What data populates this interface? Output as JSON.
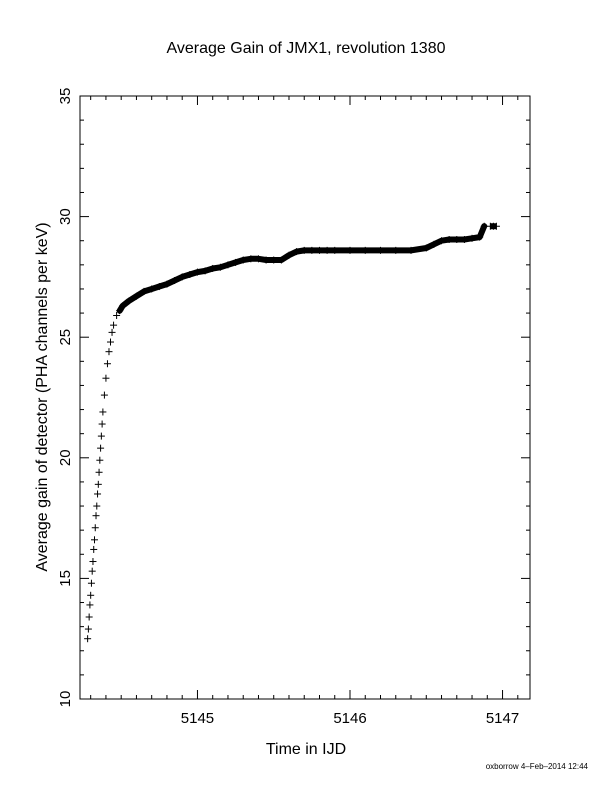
{
  "chart_data": {
    "type": "scatter",
    "title": "Average Gain of JMX1, revolution 1380",
    "xlabel": "Time in IJD",
    "ylabel": "Average gain of detector (PHA channels per keV)",
    "xlim": [
      5144.23,
      5147.18
    ],
    "ylim": [
      10,
      35
    ],
    "xticks": [
      5145,
      5146,
      5147
    ],
    "yticks": [
      10,
      15,
      20,
      25,
      30,
      35
    ],
    "marker": "plus",
    "grid": false,
    "legend": "none",
    "series": [
      {
        "x": [
          5144.28,
          5144.285,
          5144.29,
          5144.295,
          5144.3,
          5144.305,
          5144.31,
          5144.315,
          5144.32,
          5144.325,
          5144.33,
          5144.335,
          5144.34,
          5144.345,
          5144.35,
          5144.355,
          5144.36,
          5144.365,
          5144.37,
          5144.375,
          5144.38,
          5144.39,
          5144.4,
          5144.41,
          5144.42,
          5144.43,
          5144.44,
          5144.45,
          5144.47,
          5144.49,
          5144.51,
          5144.55,
          5144.6,
          5144.65,
          5144.7,
          5144.75,
          5144.8,
          5144.85,
          5144.9,
          5144.95,
          5145.0,
          5145.05,
          5145.1,
          5145.15,
          5145.2,
          5145.25,
          5145.3,
          5145.35,
          5145.4,
          5145.45,
          5145.5,
          5145.55,
          5145.6,
          5145.65,
          5145.7,
          5145.75,
          5145.8,
          5145.85,
          5145.9,
          5146.0,
          5146.1,
          5146.2,
          5146.3,
          5146.4,
          5146.5,
          5146.55,
          5146.6,
          5146.65,
          5146.7,
          5146.75,
          5146.8,
          5146.85,
          5146.88,
          5146.92,
          5146.94,
          5146.96
        ],
        "y": [
          12.5,
          12.9,
          13.4,
          13.9,
          14.3,
          14.8,
          15.3,
          15.7,
          16.2,
          16.6,
          17.1,
          17.6,
          18.0,
          18.5,
          18.9,
          19.4,
          19.9,
          20.4,
          20.9,
          21.4,
          21.9,
          22.6,
          23.3,
          23.9,
          24.4,
          24.8,
          25.2,
          25.5,
          25.9,
          26.1,
          26.3,
          26.5,
          26.7,
          26.9,
          27.0,
          27.1,
          27.2,
          27.35,
          27.5,
          27.6,
          27.7,
          27.75,
          27.85,
          27.9,
          28.0,
          28.1,
          28.2,
          28.25,
          28.25,
          28.2,
          28.2,
          28.2,
          28.4,
          28.55,
          28.6,
          28.6,
          28.6,
          28.6,
          28.6,
          28.6,
          28.6,
          28.6,
          28.6,
          28.6,
          28.7,
          28.85,
          29.0,
          29.05,
          29.05,
          29.05,
          29.1,
          29.15,
          29.6,
          29.6,
          29.6,
          29.6
        ]
      }
    ]
  },
  "footer": {
    "text": "oxborrow  4–Feb–2014 12:44"
  }
}
